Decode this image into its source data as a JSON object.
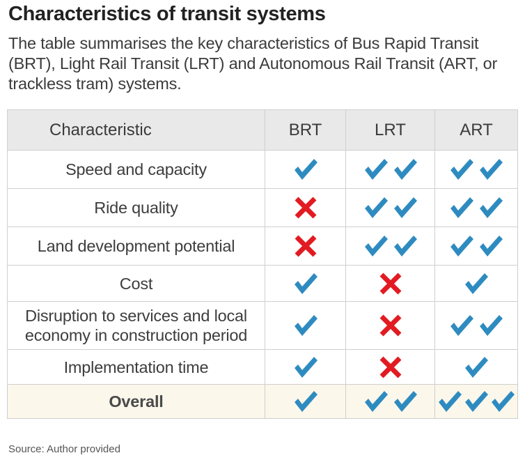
{
  "title": "Characteristics of transit systems",
  "subtitle": "The table summarises the key characteristics of Bus Rapid Transit (BRT), Light Rail Transit (LRT) and Autonomous Rail Transit (ART, or trackless tram) systems.",
  "source": "Source: Author provided",
  "colors": {
    "check": "#2e8bc0",
    "cross": "#e21b23",
    "header_bg": "#e9e9e9",
    "overall_bg": "#fbf7eb"
  },
  "icons": {
    "check": "check-icon",
    "cross": "cross-icon"
  },
  "chart_data": {
    "type": "table",
    "columns": [
      "Characteristic",
      "BRT",
      "LRT",
      "ART"
    ],
    "legend_note": "values are counts of check marks; 0 = cross",
    "rows": [
      {
        "label": "Speed and capacity",
        "values": [
          1,
          2,
          2
        ]
      },
      {
        "label": "Ride quality",
        "values": [
          0,
          2,
          2
        ]
      },
      {
        "label": "Land development potential",
        "values": [
          0,
          2,
          2
        ]
      },
      {
        "label": "Cost",
        "values": [
          1,
          0,
          1
        ]
      },
      {
        "label": "Disruption to services and local economy in construction period",
        "values": [
          1,
          0,
          2
        ]
      },
      {
        "label": "Implementation time",
        "values": [
          1,
          0,
          1
        ]
      },
      {
        "label": "Overall",
        "values": [
          1,
          2,
          3
        ],
        "bold": true
      }
    ]
  }
}
